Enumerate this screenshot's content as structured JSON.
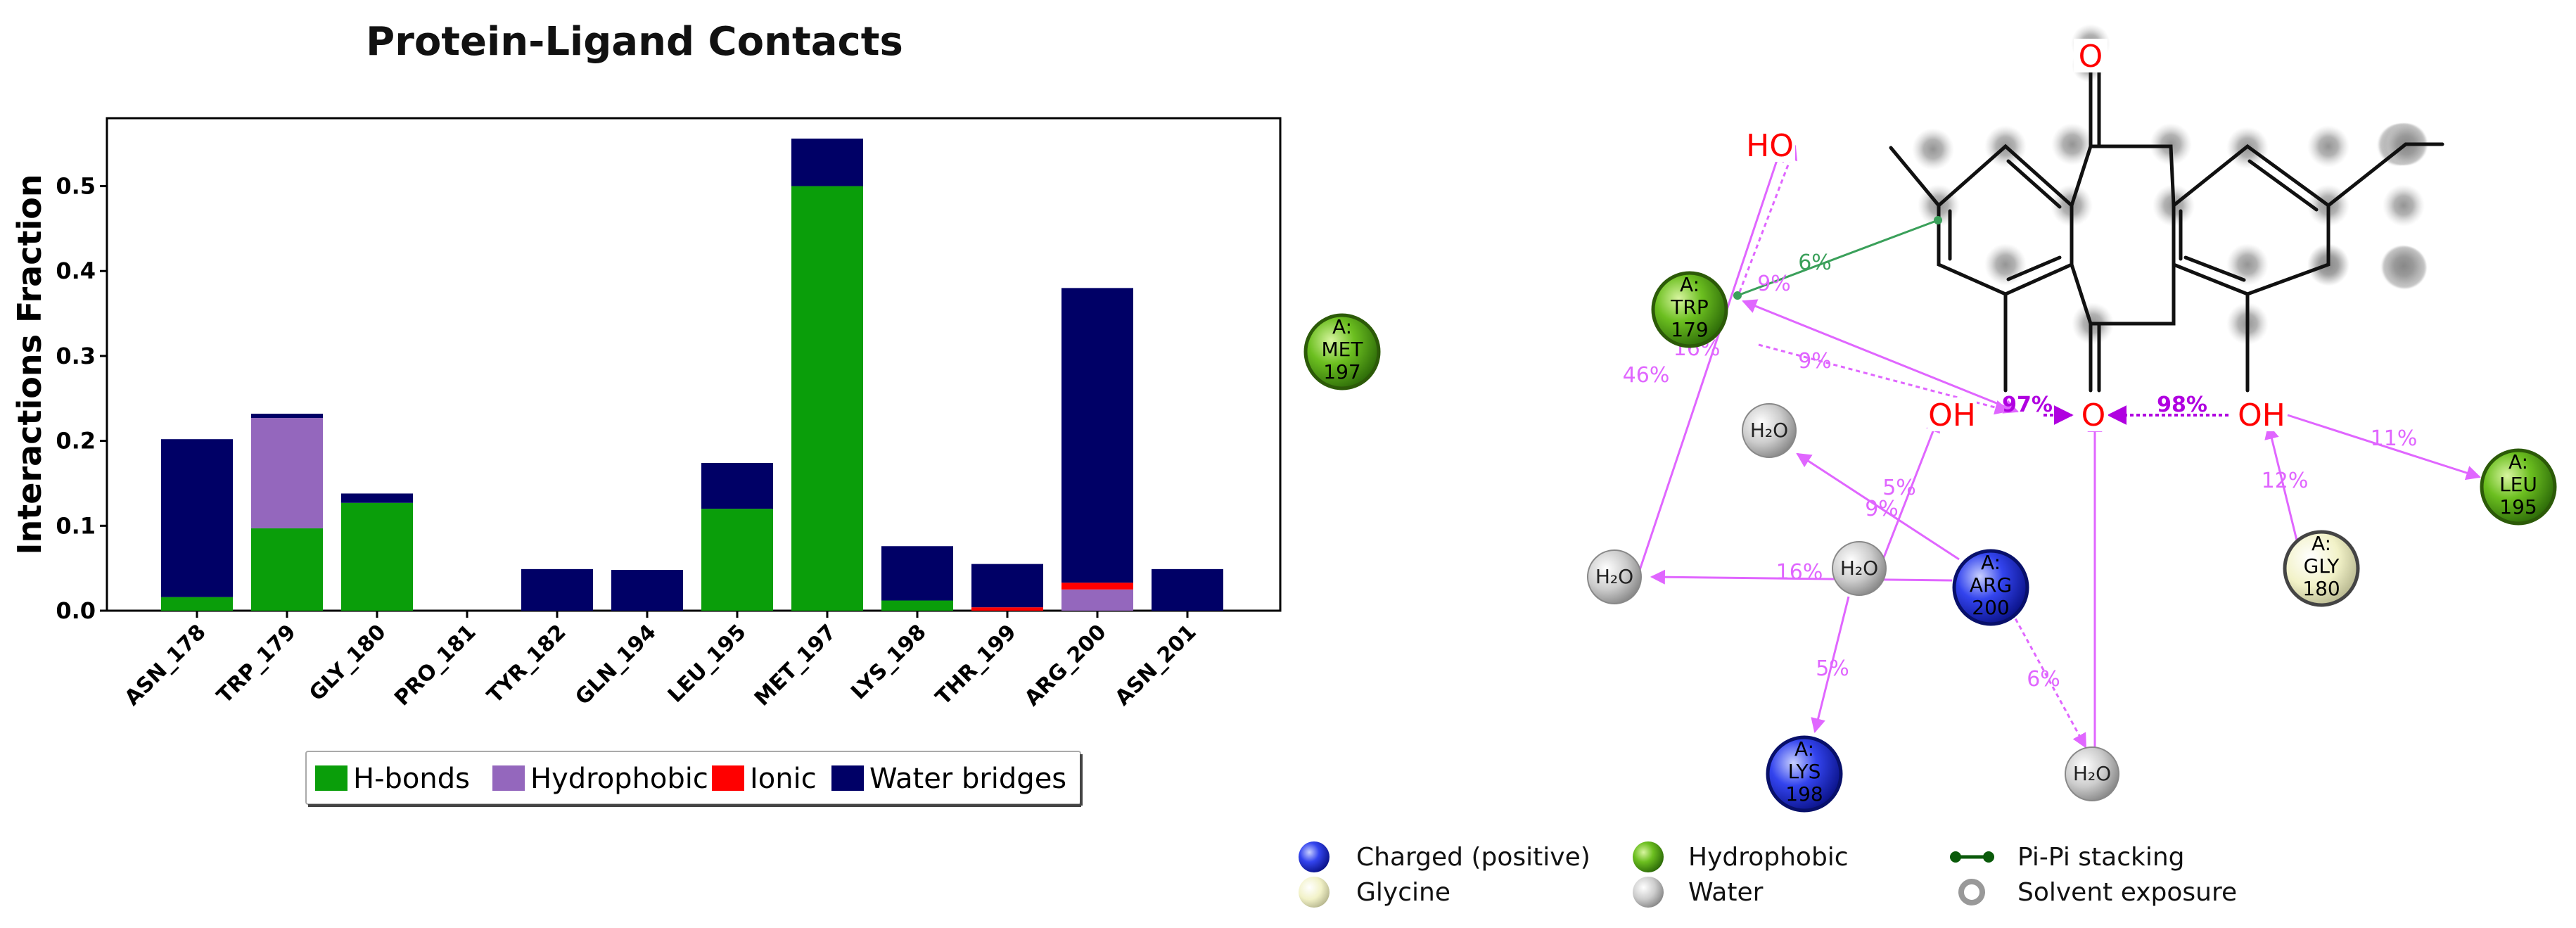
{
  "chart_data": {
    "type": "bar",
    "stacked": true,
    "title": "Protein-Ligand Contacts",
    "ylabel": "Interactions Fraction",
    "xlabel": "",
    "ylim": [
      0,
      0.58
    ],
    "yticks": [
      "0.0",
      "0.1",
      "0.2",
      "0.3",
      "0.4",
      "0.5"
    ],
    "grid": false,
    "legend_position": "bottom-center",
    "categories": [
      "ASN_178",
      "TRP_179",
      "GLY_180",
      "PRO_181",
      "TYR_182",
      "GLN_194",
      "LEU_195",
      "MET_197",
      "LYS_198",
      "THR_199",
      "ARG_200",
      "ASN_201"
    ],
    "series": [
      {
        "name": "H-bonds",
        "color": "#0a9e0a",
        "values": [
          0.016,
          0.097,
          0.127,
          0,
          0,
          0,
          0.12,
          0.5,
          0.012,
          0,
          0,
          0
        ]
      },
      {
        "name": "Hydrophobic",
        "color": "#9467bd",
        "values": [
          0,
          0.13,
          0,
          0,
          0,
          0,
          0,
          0,
          0,
          0,
          0.025,
          0
        ]
      },
      {
        "name": "Ionic",
        "color": "#ff0000",
        "values": [
          0,
          0,
          0,
          0,
          0,
          0,
          0,
          0,
          0,
          0.004,
          0.008,
          0
        ]
      },
      {
        "name": "Water bridges",
        "color": "#000066",
        "values": [
          0.186,
          0.005,
          0.011,
          0,
          0.049,
          0.048,
          0.054,
          0.056,
          0.064,
          0.051,
          0.347,
          0.049
        ]
      }
    ]
  },
  "diagram": {
    "ligand_atoms": {
      "o_top": "O",
      "ho_left": "HO",
      "oh_1": "OH",
      "o_mid": "O",
      "oh_2": "OH"
    },
    "residues": [
      {
        "id": "met197",
        "chain": "A:",
        "name": "MET",
        "num": "197",
        "type": "hydrophobic"
      },
      {
        "id": "trp179",
        "chain": "A:",
        "name": "TRP",
        "num": "179",
        "type": "hydrophobic"
      },
      {
        "id": "leu195",
        "chain": "A:",
        "name": "LEU",
        "num": "195",
        "type": "hydrophobic"
      },
      {
        "id": "gly180",
        "chain": "A:",
        "name": "GLY",
        "num": "180",
        "type": "glycine"
      },
      {
        "id": "arg200",
        "chain": "A:",
        "name": "ARG",
        "num": "200",
        "type": "charged"
      },
      {
        "id": "lys198",
        "chain": "A:",
        "name": "LYS",
        "num": "198",
        "type": "charged"
      }
    ],
    "water_label": "H₂O",
    "percentages": {
      "pipi": "6%",
      "trp_ho_9": "9%",
      "trp_16": "16%",
      "trp_oh_9": "9%",
      "met_46": "46%",
      "oh_o_97": "97%",
      "oh_o_98": "98%",
      "leu_11": "11%",
      "gly_12": "12%",
      "arg_w_5": "5%",
      "arg_w_9": "9%",
      "arg_16": "16%",
      "w_lys_5": "5%",
      "arg_w_6": "6%"
    },
    "colors": {
      "hbond": "#e066ff",
      "pipi": "#3aa05a",
      "oxygen": "#ff0000",
      "charged": "#2233dd",
      "hydrophobic": "#4a9a12",
      "glycine": "#f0f0c0",
      "water": "#bbbbbb"
    },
    "legend": [
      {
        "label": "Charged (positive)",
        "icon": "charged-ball-icon"
      },
      {
        "label": "Hydrophobic",
        "icon": "hydrophobic-ball-icon"
      },
      {
        "label": "Pi-Pi stacking",
        "icon": "pi-pi-stacking-icon"
      },
      {
        "label": "Glycine",
        "icon": "glycine-ball-icon"
      },
      {
        "label": "Water",
        "icon": "water-ball-icon"
      },
      {
        "label": "Solvent exposure",
        "icon": "solvent-exposure-icon"
      }
    ]
  }
}
